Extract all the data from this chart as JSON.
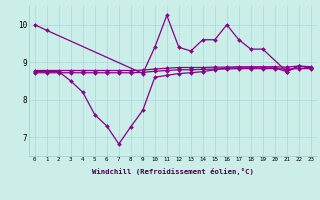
{
  "background_color": "#cceee8",
  "grid_color": "#aadddd",
  "line_color": "#880088",
  "x_ticks": [
    0,
    1,
    2,
    3,
    4,
    5,
    6,
    7,
    8,
    9,
    10,
    11,
    12,
    13,
    14,
    15,
    16,
    17,
    18,
    19,
    20,
    21,
    22,
    23
  ],
  "xlabel": "Windchill (Refroidissement éolien,°C)",
  "ylim": [
    6.5,
    10.5
  ],
  "xlim": [
    -0.5,
    23.5
  ],
  "yticks": [
    7,
    8,
    9,
    10
  ],
  "series": [
    {
      "x": [
        0,
        1,
        9,
        10,
        11,
        12,
        13,
        14,
        15,
        16,
        17,
        18,
        19,
        21,
        22,
        23
      ],
      "y": [
        10.0,
        9.85,
        8.7,
        9.4,
        10.25,
        9.4,
        9.3,
        9.6,
        9.6,
        10.0,
        9.6,
        9.35,
        9.35,
        8.75,
        8.9,
        8.85
      ]
    },
    {
      "x": [
        0,
        2,
        3,
        4,
        5,
        6,
        7,
        8,
        9,
        10,
        11,
        12,
        13,
        14,
        15,
        16,
        17,
        18,
        19,
        20,
        21,
        22,
        23
      ],
      "y": [
        8.75,
        8.75,
        8.5,
        8.2,
        7.6,
        7.3,
        6.82,
        7.28,
        7.72,
        8.6,
        8.65,
        8.7,
        8.72,
        8.75,
        8.8,
        8.85,
        8.85,
        8.85,
        8.85,
        8.85,
        8.75,
        8.9,
        8.85
      ]
    },
    {
      "x": [
        0,
        1,
        2,
        3,
        4,
        5,
        6,
        7,
        8,
        9,
        10,
        11,
        12,
        13,
        14,
        15,
        16,
        17,
        18,
        19,
        20,
        21,
        22,
        23
      ],
      "y": [
        8.78,
        8.78,
        8.78,
        8.78,
        8.78,
        8.78,
        8.78,
        8.78,
        8.78,
        8.79,
        8.82,
        8.84,
        8.86,
        8.86,
        8.86,
        8.87,
        8.87,
        8.88,
        8.88,
        8.88,
        8.88,
        8.87,
        8.9,
        8.88
      ]
    },
    {
      "x": [
        0,
        1,
        2,
        3,
        4,
        5,
        6,
        7,
        8,
        9,
        10,
        11,
        12,
        13,
        14,
        15,
        16,
        17,
        18,
        19,
        20,
        21,
        22,
        23
      ],
      "y": [
        8.72,
        8.72,
        8.72,
        8.72,
        8.72,
        8.72,
        8.72,
        8.72,
        8.72,
        8.73,
        8.76,
        8.78,
        8.8,
        8.8,
        8.81,
        8.82,
        8.82,
        8.83,
        8.83,
        8.83,
        8.83,
        8.82,
        8.83,
        8.83
      ]
    }
  ]
}
